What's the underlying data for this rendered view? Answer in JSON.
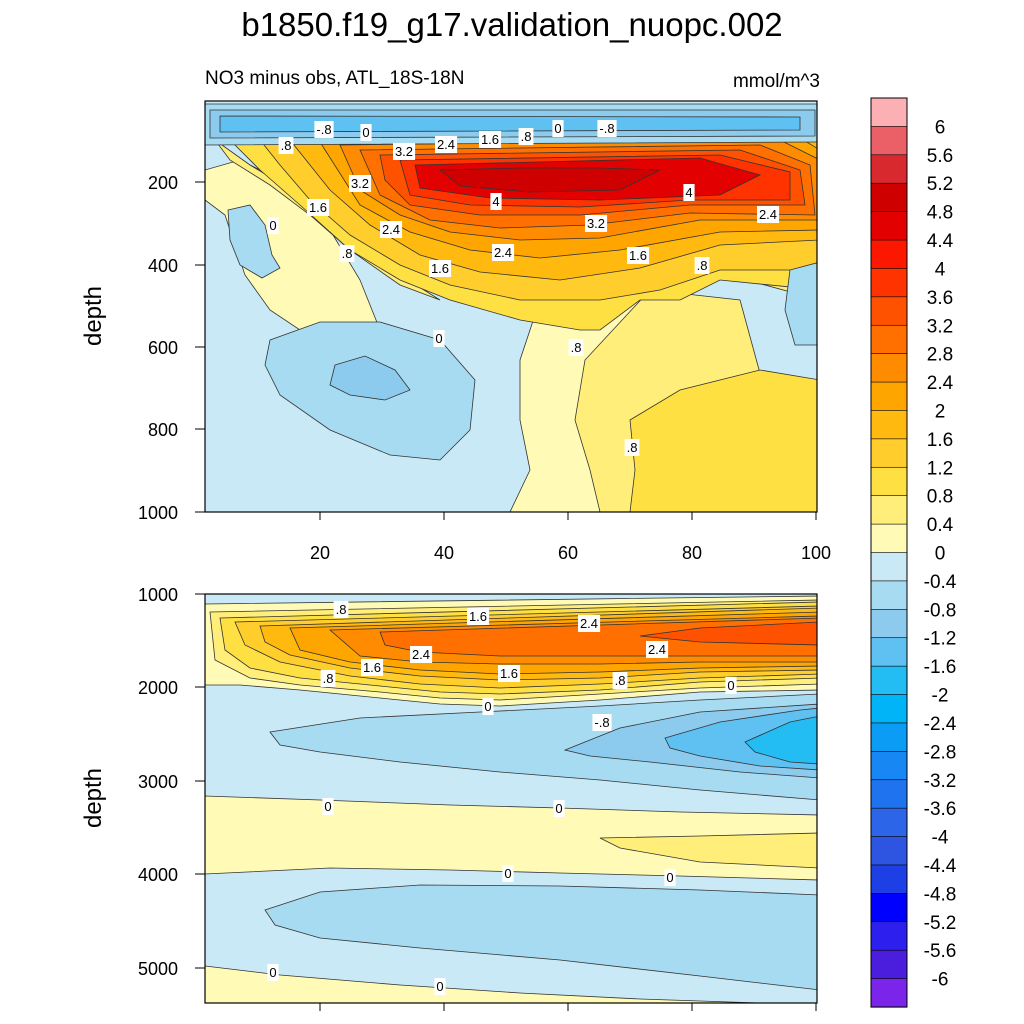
{
  "chart_data": {
    "type": "contour",
    "title": "b1850.f19_g17.validation_nuopc.002",
    "subtitle_left": "NO3 minus obs, ATL_18S-18N",
    "subtitle_right": "mmol/m^3",
    "colorbar": {
      "labels": [
        "6",
        "5.6",
        "5.2",
        "4.8",
        "4.4",
        "4",
        "3.6",
        "3.2",
        "2.8",
        "2.4",
        "2",
        "1.6",
        "1.2",
        "0.8",
        "0.4",
        "0",
        "-0.4",
        "-0.8",
        "-1.2",
        "-1.6",
        "-2",
        "-2.4",
        "-2.8",
        "-3.2",
        "-3.6",
        "-4",
        "-4.4",
        "-4.8",
        "-5.2",
        "-5.6",
        "-6"
      ],
      "colors": [
        "#fdb0b3",
        "#eb6066",
        "#d82a2e",
        "#cf0000",
        "#e30000",
        "#fc1800",
        "#ff3300",
        "#ff5200",
        "#ff7000",
        "#ff8c00",
        "#ffa500",
        "#ffb90f",
        "#ffcd2c",
        "#ffe043",
        "#ffee79",
        "#fffab5",
        "#c9e9f6",
        "#a6dbf2",
        "#8ccbee",
        "#5ec1f1",
        "#23bdf4",
        "#00b4f7",
        "#0b9cf6",
        "#1787f4",
        "#1f73ee",
        "#2c65e8",
        "#2e55e2",
        "#1e3fe5",
        "#0000ff",
        "#2d20ee",
        "#4b1ddc",
        "#7a25e9"
      ]
    },
    "panels": [
      {
        "name": "upper",
        "ylabel": "depth",
        "xlim": [
          0,
          101
        ],
        "ylim": [
          1000,
          0
        ],
        "xticks": [
          "20",
          "40",
          "60",
          "80",
          "100"
        ],
        "yticks": [
          "200",
          "400",
          "600",
          "800",
          "1000"
        ],
        "contour_labels": [
          ".8",
          "-.8",
          "0",
          "3.2",
          "2.4",
          "1.6",
          ".8",
          "0",
          "-.8",
          "3.2",
          "4",
          "1.6",
          "0",
          "2.4",
          "3.2",
          "4",
          "2.4",
          ".8",
          "2.4",
          "1.6",
          "1.6",
          ".8",
          "0",
          ".8",
          ".8"
        ]
      },
      {
        "name": "lower",
        "ylabel": "depth",
        "xlim": [
          0,
          101
        ],
        "ylim": [
          5300,
          1000
        ],
        "yticks": [
          "1000",
          "2000",
          "3000",
          "4000",
          "5000"
        ],
        "contour_labels": [
          ".8",
          "1.6",
          "2.4",
          "2.4",
          "2.4",
          "1.6",
          ".8",
          "1.6",
          ".8",
          "0",
          "0",
          "-.8",
          "0",
          "0",
          "0",
          "0",
          "0",
          "0"
        ]
      }
    ]
  }
}
